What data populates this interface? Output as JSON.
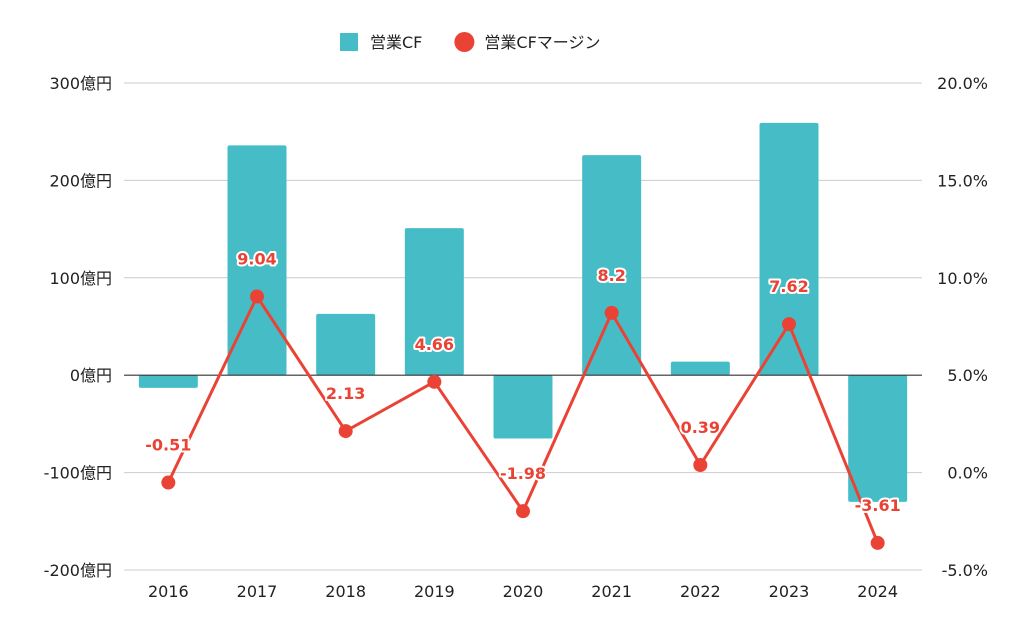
{
  "chart_data": {
    "type": "bar",
    "categories": [
      "2016",
      "2017",
      "2018",
      "2019",
      "2020",
      "2021",
      "2022",
      "2023",
      "2024"
    ],
    "series": [
      {
        "name": "営業CF",
        "type": "bar",
        "axis": "left",
        "color": "#46bdc6",
        "values": [
          -13,
          236,
          63,
          151,
          -65,
          226,
          14,
          259,
          -130
        ]
      },
      {
        "name": "営業CFマージン",
        "type": "line",
        "axis": "right",
        "color": "#ea4335",
        "values": [
          -0.51,
          9.04,
          2.13,
          4.66,
          -1.98,
          8.2,
          0.39,
          7.62,
          -3.61
        ],
        "data_labels": [
          "-0.51",
          "9.04",
          "2.13",
          "4.66",
          "-1.98",
          "8.2",
          "0.39",
          "7.62",
          "-3.61"
        ]
      }
    ],
    "y_left": {
      "range": [
        -200,
        300
      ],
      "ticks": [
        300,
        200,
        100,
        0,
        -100,
        -200
      ],
      "tick_labels": [
        "300億円",
        "200億円",
        "100億円",
        "0億円",
        "-100億円",
        "-200億円"
      ]
    },
    "y_right": {
      "range": [
        -5,
        20
      ],
      "ticks": [
        20,
        15,
        10,
        5,
        0,
        -5
      ],
      "tick_labels": [
        "20.0%",
        "15.0%",
        "10.0%",
        "5.0%",
        "0.0%",
        "-5.0%"
      ]
    },
    "grid": true,
    "legend": "top-center",
    "legend_items": [
      {
        "name": "営業CF",
        "shape": "square",
        "color": "#46bdc6"
      },
      {
        "name": "営業CFマージン",
        "shape": "circle",
        "color": "#ea4335"
      }
    ]
  }
}
